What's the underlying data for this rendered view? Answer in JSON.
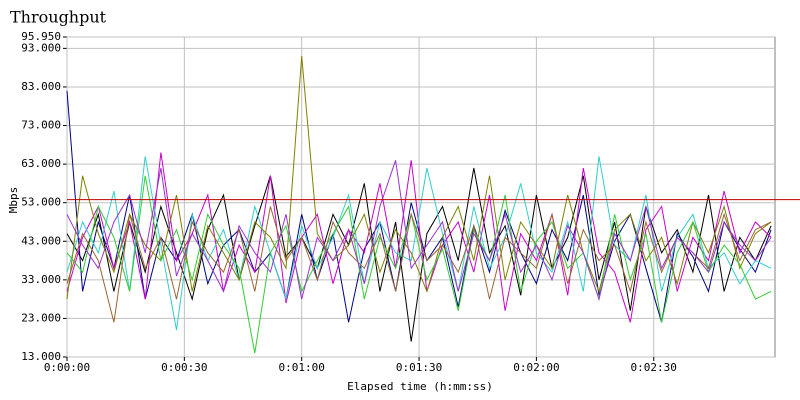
{
  "chart_data": {
    "type": "line",
    "title": "Throughput",
    "ylabel": "Mbps",
    "xlabel": "Elapsed time (h:mm:ss)",
    "x": [
      0,
      4,
      8,
      12,
      16,
      20,
      24,
      28,
      32,
      36,
      40,
      44,
      48,
      52,
      56,
      60,
      64,
      68,
      72,
      76,
      80,
      84,
      88,
      92,
      96,
      100,
      104,
      108,
      112,
      116,
      120,
      124,
      128,
      132,
      136,
      140,
      144,
      148,
      152,
      156,
      160,
      164,
      168,
      172,
      176,
      180
    ],
    "xlim": [
      0,
      181
    ],
    "xticks": [
      {
        "value": 0,
        "label": "0:00:00"
      },
      {
        "value": 30,
        "label": "0:00:30"
      },
      {
        "value": 60,
        "label": "0:01:00"
      },
      {
        "value": 90,
        "label": "0:01:30"
      },
      {
        "value": 120,
        "label": "0:02:00"
      },
      {
        "value": 150,
        "label": "0:02:30"
      }
    ],
    "ylim": [
      13,
      95.95
    ],
    "yticks": [
      {
        "value": 13,
        "label": "13.000"
      },
      {
        "value": 23,
        "label": "23.000"
      },
      {
        "value": 33,
        "label": "33.000"
      },
      {
        "value": 43,
        "label": "43.000"
      },
      {
        "value": 53,
        "label": "53.000"
      },
      {
        "value": 63,
        "label": "63.000"
      },
      {
        "value": 73,
        "label": "73.000"
      },
      {
        "value": 83,
        "label": "83.000"
      },
      {
        "value": 93,
        "label": "93.000"
      },
      {
        "value": 95.95,
        "label": "95.950"
      }
    ],
    "grid": true,
    "reference_line": {
      "value": 53.8,
      "color": "#c00000"
    },
    "series": [
      {
        "color": "#000000",
        "values": [
          45,
          38,
          50,
          30,
          48,
          35,
          52,
          40,
          28,
          46,
          55,
          33,
          47,
          60,
          39,
          44,
          36,
          50,
          42,
          58,
          30,
          48,
          17,
          45,
          52,
          38,
          62,
          40,
          47,
          29,
          55,
          36,
          44,
          60,
          33,
          48,
          25,
          52,
          40,
          46,
          35,
          55,
          30,
          44,
          38,
          47
        ]
      },
      {
        "color": "#000080",
        "values": [
          82,
          30,
          48,
          36,
          55,
          28,
          44,
          38,
          50,
          32,
          42,
          46,
          35,
          40,
          28,
          50,
          33,
          45,
          22,
          41,
          48,
          30,
          53,
          38,
          44,
          26,
          47,
          35,
          51,
          40,
          32,
          46,
          38,
          55,
          29,
          43,
          50,
          36,
          22,
          45,
          39,
          30,
          48,
          41,
          35,
          46
        ]
      },
      {
        "color": "#cc00cc",
        "values": [
          30,
          44,
          52,
          36,
          48,
          28,
          66,
          38,
          45,
          55,
          30,
          42,
          35,
          60,
          27,
          44,
          50,
          32,
          46,
          40,
          58,
          36,
          64,
          30,
          42,
          48,
          35,
          55,
          25,
          45,
          38,
          50,
          29,
          62,
          40,
          35,
          22,
          46,
          52,
          30,
          44,
          38,
          56,
          40,
          48,
          44
        ]
      },
      {
        "color": "#33cccc",
        "values": [
          35,
          48,
          40,
          56,
          30,
          65,
          42,
          20,
          50,
          38,
          46,
          33,
          52,
          40,
          28,
          47,
          36,
          44,
          55,
          32,
          48,
          40,
          38,
          62,
          45,
          30,
          52,
          36,
          44,
          58,
          40,
          35,
          48,
          30,
          65,
          42,
          38,
          55,
          30,
          44,
          50,
          36,
          40,
          32,
          38,
          36
        ]
      },
      {
        "color": "#808000",
        "values": [
          28,
          60,
          45,
          35,
          50,
          42,
          38,
          55,
          30,
          47,
          40,
          33,
          48,
          44,
          36,
          91,
          45,
          38,
          42,
          50,
          35,
          46,
          40,
          30,
          44,
          52,
          38,
          60,
          33,
          48,
          42,
          36,
          55,
          40,
          30,
          46,
          50,
          38,
          44,
          32,
          48,
          40,
          52,
          36,
          45,
          48
        ]
      },
      {
        "color": "#33cc33",
        "values": [
          40,
          35,
          52,
          44,
          30,
          60,
          38,
          46,
          33,
          50,
          42,
          36,
          14,
          40,
          47,
          30,
          38,
          45,
          52,
          28,
          44,
          36,
          50,
          33,
          41,
          25,
          46,
          38,
          55,
          30,
          43,
          48,
          36,
          40,
          28,
          50,
          33,
          45,
          22,
          40,
          48,
          35,
          42,
          37,
          28,
          30
        ]
      },
      {
        "color": "#996633",
        "values": [
          32,
          45,
          38,
          22,
          50,
          36,
          44,
          28,
          48,
          40,
          35,
          46,
          30,
          52,
          38,
          44,
          33,
          48,
          40,
          36,
          45,
          30,
          50,
          38,
          42,
          35,
          47,
          28,
          44,
          40,
          36,
          50,
          32,
          46,
          38,
          42,
          30,
          48,
          35,
          44,
          40,
          36,
          50,
          38,
          46,
          48
        ]
      },
      {
        "color": "#9933cc",
        "values": [
          50,
          42,
          36,
          48,
          55,
          40,
          62,
          34,
          45,
          38,
          30,
          47,
          40,
          35,
          50,
          28,
          44,
          38,
          46,
          32,
          52,
          64,
          36,
          42,
          48,
          30,
          45,
          38,
          50,
          35,
          42,
          33,
          47,
          40,
          28,
          45,
          38,
          52,
          36,
          44,
          40,
          35,
          48,
          42,
          38,
          44
        ]
      }
    ]
  }
}
